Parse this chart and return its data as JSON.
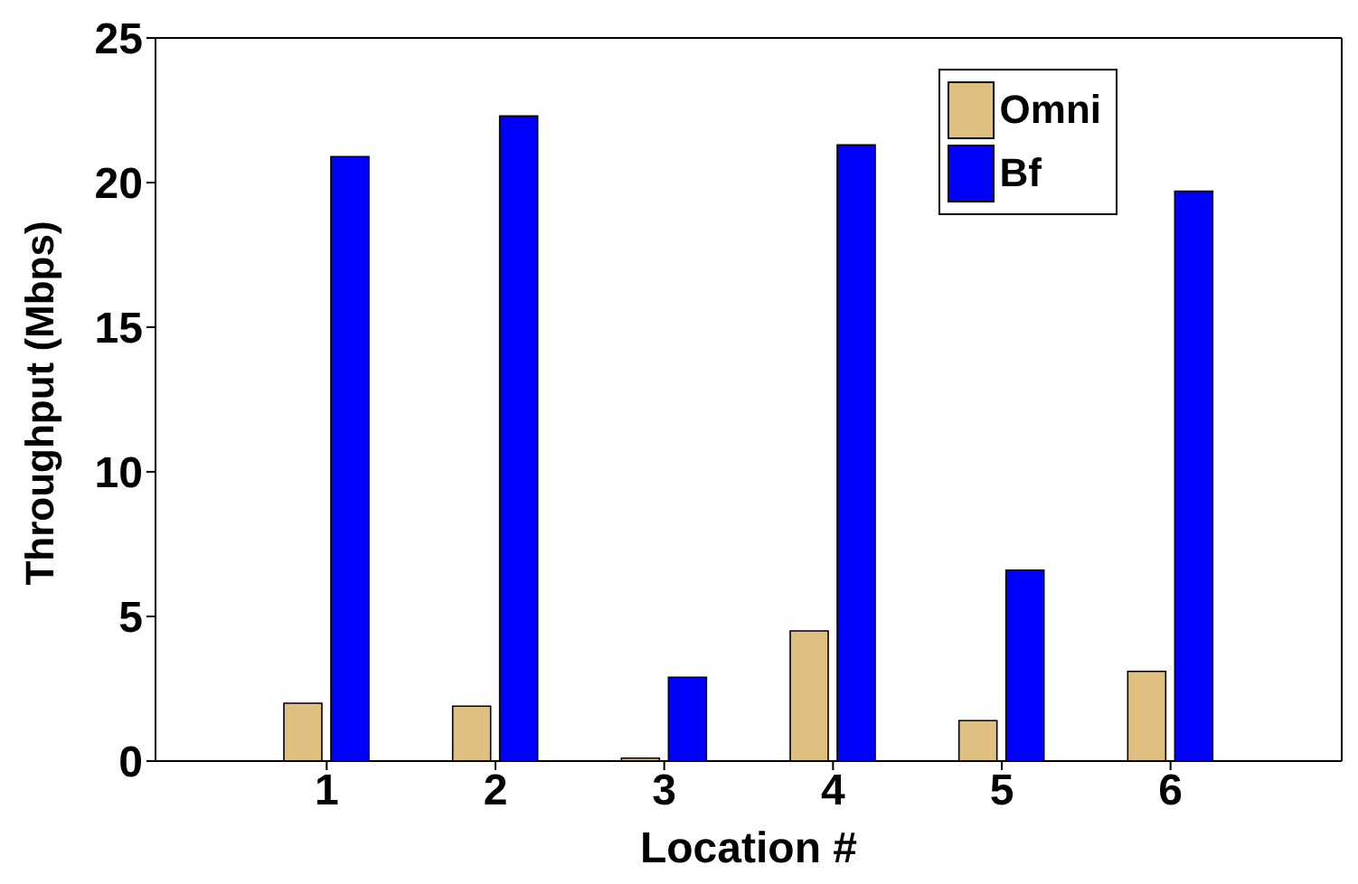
{
  "chart_data": {
    "type": "bar",
    "xlabel": "Location #",
    "ylabel": "Throughput (Mbps)",
    "categories": [
      "1",
      "2",
      "3",
      "4",
      "5",
      "6"
    ],
    "series": [
      {
        "name": "Omni",
        "color": "#e0c080",
        "values": [
          2.0,
          1.9,
          0.1,
          4.5,
          1.4,
          3.1
        ]
      },
      {
        "name": "Bf",
        "color": "#0000ff",
        "values": [
          20.9,
          22.3,
          2.9,
          21.3,
          6.6,
          19.7
        ]
      }
    ],
    "ylim": [
      0,
      25
    ],
    "yticks": [
      0,
      5,
      10,
      15,
      20,
      25
    ],
    "legend": "top right"
  }
}
